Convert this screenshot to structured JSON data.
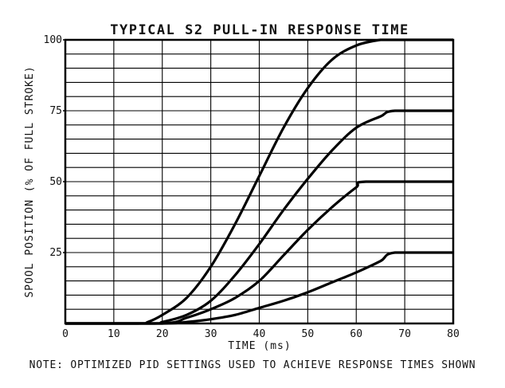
{
  "chart_data": {
    "type": "line",
    "title": "TYPICAL S2 PULL-IN RESPONSE TIME",
    "xlabel": "TIME (ms)",
    "ylabel": "SPOOL POSITION (% OF FULL STROKE)",
    "xlim": [
      0,
      80
    ],
    "ylim": [
      0,
      100
    ],
    "x_ticks": [
      "0",
      "10",
      "20",
      "30",
      "40",
      "50",
      "60",
      "70",
      "80"
    ],
    "y_ticks": [
      "25",
      "50",
      "75",
      "100"
    ],
    "grid": true,
    "legend": "none",
    "series": [
      {
        "x": [
          0,
          15,
          17,
          20,
          25,
          30,
          35,
          40,
          45,
          50,
          55,
          60,
          65,
          68,
          80
        ],
        "y": [
          0,
          0,
          0.5,
          3,
          9,
          20,
          35,
          52,
          69,
          83,
          93,
          98,
          100,
          100,
          100
        ]
      },
      {
        "x": [
          0,
          18,
          20,
          25,
          30,
          35,
          40,
          45,
          50,
          55,
          60,
          65,
          68,
          80
        ],
        "y": [
          0,
          0,
          0.5,
          3,
          8,
          17,
          28,
          40,
          51,
          61,
          69,
          73,
          75,
          75
        ]
      },
      {
        "x": [
          0,
          20,
          25,
          30,
          35,
          40,
          45,
          50,
          55,
          60,
          62,
          80
        ],
        "y": [
          0,
          0,
          2,
          5,
          9,
          15,
          24,
          33,
          41,
          48,
          50,
          50
        ]
      },
      {
        "x": [
          0,
          20,
          25,
          30,
          35,
          40,
          45,
          50,
          55,
          60,
          65,
          68,
          80
        ],
        "y": [
          0,
          0,
          0.5,
          1.5,
          3,
          5.5,
          8,
          11,
          14.5,
          18,
          22,
          25,
          25
        ]
      }
    ]
  },
  "footer": {
    "note": "NOTE: OPTIMIZED PID SETTINGS USED TO ACHIEVE RESPONSE TIMES SHOWN"
  }
}
